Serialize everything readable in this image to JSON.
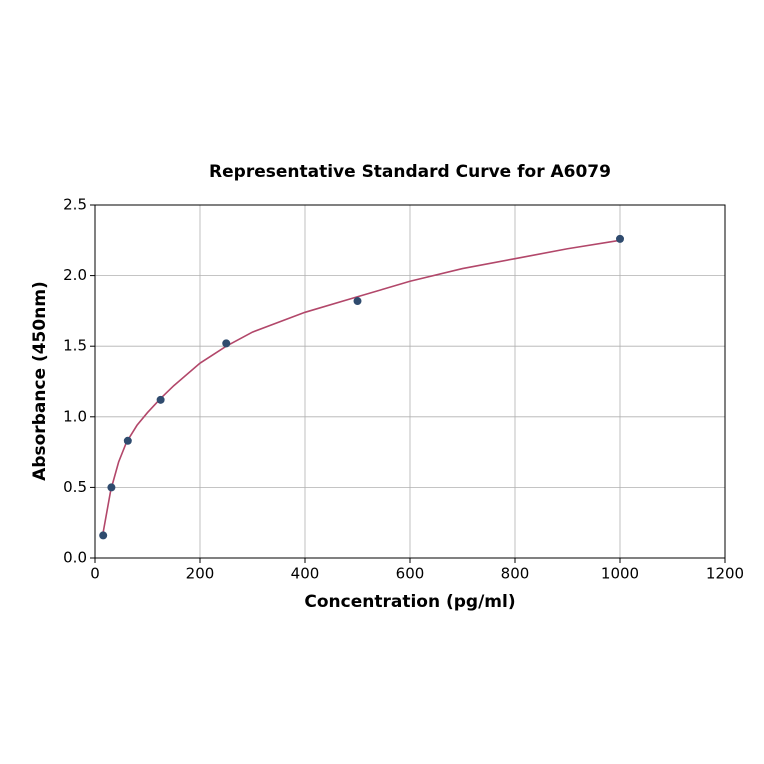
{
  "chart_data": {
    "type": "scatter",
    "title": "Representative Standard Curve for A6079",
    "x_label": "Concentration (pg/ml)",
    "y_label": "Absorbance (450nm)",
    "xlim": [
      0,
      1200
    ],
    "ylim": [
      0,
      2.5
    ],
    "xticks": [
      0,
      200,
      400,
      600,
      800,
      1000,
      1200
    ],
    "yticks": [
      {
        "value": 0,
        "label": "0.0"
      },
      {
        "value": 0.5,
        "label": "0.5"
      },
      {
        "value": 1,
        "label": "1.0"
      },
      {
        "value": 1.5,
        "label": "1.5"
      },
      {
        "value": 2,
        "label": "2.0"
      },
      {
        "value": 2.5,
        "label": "2.5"
      }
    ],
    "grid": true,
    "series": [
      {
        "type": "scatter",
        "color": "#2f4b6e",
        "x": [
          15.6,
          31.25,
          62.5,
          125,
          250,
          500,
          1000
        ],
        "values": [
          0.16,
          0.5,
          0.83,
          1.12,
          1.52,
          1.82,
          2.26
        ]
      },
      {
        "type": "line",
        "color": "#b2476a",
        "x": [
          15,
          30,
          45,
          60,
          80,
          100,
          125,
          150,
          200,
          250,
          300,
          400,
          500,
          600,
          700,
          800,
          900,
          1000
        ],
        "values": [
          0.17,
          0.48,
          0.68,
          0.82,
          0.94,
          1.03,
          1.13,
          1.22,
          1.38,
          1.5,
          1.6,
          1.74,
          1.85,
          1.96,
          2.05,
          2.12,
          2.19,
          2.25
        ]
      }
    ]
  }
}
